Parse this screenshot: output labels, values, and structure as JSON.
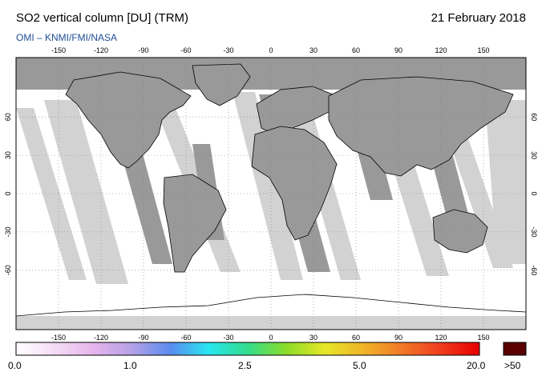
{
  "header": {
    "title": "SO2 vertical column [DU] (TRM)",
    "date": "21 February 2018",
    "credit": "OMI  –  KNMI/FMI/NASA"
  },
  "map": {
    "lon_ticks": [
      "-150",
      "-120",
      "-90",
      "-60",
      "-30",
      "0",
      "30",
      "60",
      "90",
      "120",
      "150"
    ],
    "lat_ticks": [
      "60",
      "30",
      "0",
      "-30",
      "-60"
    ],
    "colors": {
      "nodata_dark": "#999999",
      "nodata_light": "#d2d2d2",
      "land_outline": "#000000",
      "background": "#ffffff",
      "graticule": "#7f7f7f"
    }
  },
  "colorbar": {
    "labels": [
      "0.0",
      "1.0",
      "2.5",
      "5.0",
      "20.0"
    ],
    "over_label": ">50",
    "over_color": "#5a0000",
    "gradient_colors": [
      "#ffffff",
      "#f4dcf4",
      "#e6b4ec",
      "#b4a0e6",
      "#5a8cf0",
      "#28e6f0",
      "#32dc8c",
      "#8cdc28",
      "#e6e628",
      "#f0b428",
      "#f07828",
      "#f03c1e",
      "#e60000"
    ]
  }
}
